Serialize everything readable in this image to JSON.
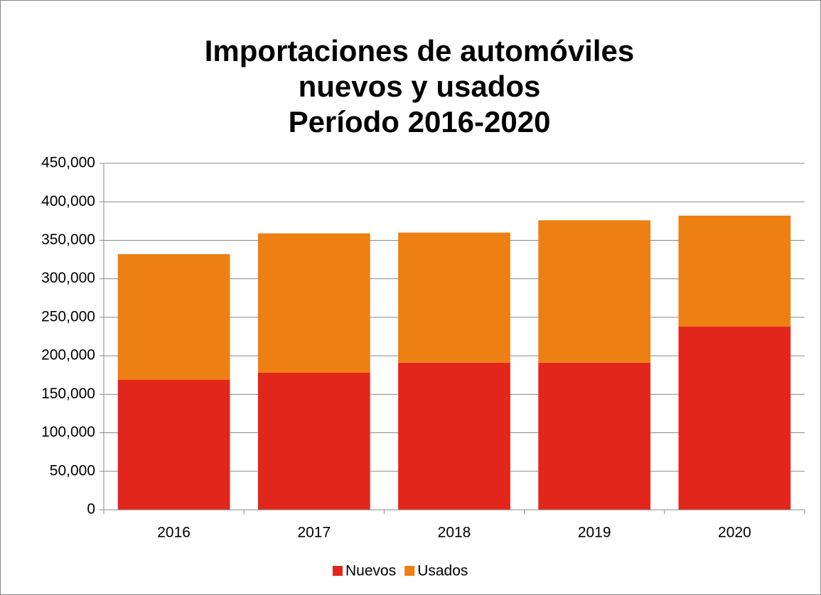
{
  "chart_data": {
    "type": "stacked_bar",
    "title": [
      "Importaciones de automóviles",
      "nuevos y usados",
      "Período 2016-2020"
    ],
    "categories": [
      "2016",
      "2017",
      "2018",
      "2019",
      "2020"
    ],
    "series": [
      {
        "name": "Nuevos",
        "color": "#e2261c",
        "values": [
          169000,
          178000,
          191000,
          191000,
          238000
        ]
      },
      {
        "name": "Usados",
        "color": "#ee7f12",
        "values": [
          163000,
          181000,
          169000,
          185000,
          144000
        ]
      }
    ],
    "ylim": [
      0,
      450000
    ],
    "yticks": [
      0,
      {
        "value": 50000,
        "label": "50,000"
      },
      {
        "value": 100000,
        "label": "100,000"
      },
      {
        "value": 150000,
        "label": "150,000"
      },
      {
        "value": 200000,
        "label": "200,000"
      },
      {
        "value": 250000,
        "label": "250,000"
      },
      {
        "value": 300000,
        "label": "300,000"
      },
      {
        "value": 350000,
        "label": "350,000"
      },
      {
        "value": 400000,
        "label": "400,000"
      },
      {
        "value": 450000,
        "label": "450,000"
      }
    ],
    "grid": true,
    "legend": "bottom"
  }
}
